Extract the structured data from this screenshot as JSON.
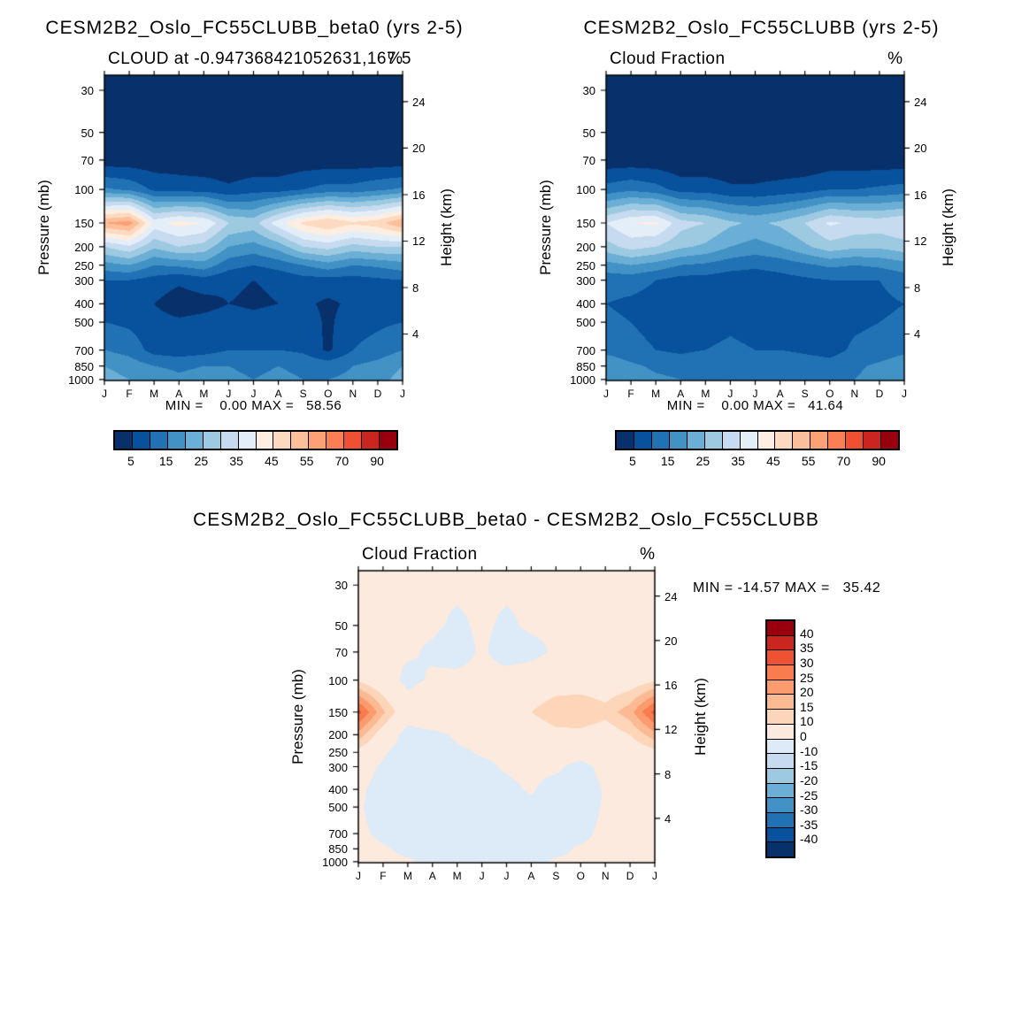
{
  "figure": {
    "background": "#ffffff"
  },
  "chart_data": [
    {
      "type": "heatmap",
      "title": "CESM2B2_Oslo_FC55CLUBB_beta0 (yrs 2-5)",
      "subtitle": "CLOUD at -0.947368421052631,167.5",
      "unit": "%",
      "ylabel_left": "Pressure (mb)",
      "ylabel_right": "Height (km)",
      "x_ticklabels": [
        "J",
        "F",
        "M",
        "A",
        "M",
        "J",
        "J",
        "A",
        "S",
        "O",
        "N",
        "D",
        "J"
      ],
      "pressure_levels_mb": [
        30,
        50,
        70,
        100,
        150,
        200,
        250,
        300,
        400,
        500,
        700,
        850,
        1000
      ],
      "height_ticks_km": [
        24,
        20,
        16,
        12,
        8,
        4
      ],
      "pressure_axis_range_mb": [
        25,
        1013
      ],
      "min": 0.0,
      "max": 58.56,
      "minmax_text": "MIN =    0.00 MAX =   58.56",
      "colorbar": {
        "orientation": "horizontal",
        "edges": [
          5,
          10,
          15,
          20,
          25,
          30,
          35,
          40,
          45,
          50,
          55,
          60,
          70,
          80,
          90
        ],
        "labels": [
          "5",
          "15",
          "25",
          "35",
          "45",
          "55",
          "70",
          "90"
        ],
        "colors": [
          "#08306b",
          "#08519c",
          "#2171b5",
          "#4292c6",
          "#6baed6",
          "#9ecae1",
          "#c6dbef",
          "#e3eef8",
          "#fdeee1",
          "#fdd9c0",
          "#fcbf9b",
          "#fca176",
          "#fb7e54",
          "#ef4f33",
          "#cb2520",
          "#99000d"
        ]
      },
      "values": [
        [
          1,
          1,
          1,
          1,
          1,
          1,
          1,
          1,
          1,
          1,
          1,
          1,
          1
        ],
        [
          1,
          1,
          1,
          1,
          1,
          1,
          1,
          1,
          1,
          1,
          1,
          1,
          1
        ],
        [
          2,
          2,
          2,
          2,
          1,
          1,
          1,
          1,
          2,
          2,
          2,
          2,
          2
        ],
        [
          16,
          14,
          9,
          8,
          8,
          6,
          8,
          8,
          10,
          12,
          12,
          14,
          16
        ],
        [
          55,
          58,
          38,
          42,
          40,
          30,
          28,
          38,
          46,
          50,
          46,
          48,
          55
        ],
        [
          30,
          34,
          26,
          30,
          28,
          20,
          18,
          22,
          30,
          32,
          28,
          30,
          30
        ],
        [
          18,
          20,
          15,
          16,
          18,
          12,
          10,
          12,
          15,
          18,
          15,
          16,
          18
        ],
        [
          10,
          10,
          8,
          6,
          8,
          6,
          5,
          6,
          8,
          8,
          8,
          9,
          10
        ],
        [
          8,
          7,
          5,
          2,
          3,
          5,
          4,
          5,
          6,
          4,
          6,
          7,
          8
        ],
        [
          10,
          9,
          7,
          6,
          7,
          8,
          7,
          8,
          8,
          4,
          8,
          9,
          10
        ],
        [
          15,
          13,
          8,
          7,
          8,
          10,
          10,
          10,
          9,
          4,
          10,
          12,
          15
        ],
        [
          20,
          18,
          15,
          14,
          15,
          15,
          14,
          15,
          14,
          13,
          15,
          17,
          20
        ],
        [
          22,
          20,
          18,
          16,
          17,
          16,
          15,
          16,
          15,
          15,
          16,
          18,
          22
        ]
      ]
    },
    {
      "type": "heatmap",
      "title": "CESM2B2_Oslo_FC55CLUBB (yrs 2-5)",
      "subtitle": "Cloud Fraction",
      "unit": "%",
      "ylabel_left": "Pressure (mb)",
      "ylabel_right": "Height (km)",
      "x_ticklabels": [
        "J",
        "F",
        "M",
        "A",
        "M",
        "J",
        "J",
        "A",
        "S",
        "O",
        "N",
        "D",
        "J"
      ],
      "pressure_levels_mb": [
        30,
        50,
        70,
        100,
        150,
        200,
        250,
        300,
        400,
        500,
        700,
        850,
        1000
      ],
      "height_ticks_km": [
        24,
        20,
        16,
        12,
        8,
        4
      ],
      "pressure_axis_range_mb": [
        25,
        1013
      ],
      "min": 0.0,
      "max": 41.64,
      "minmax_text": "MIN =    0.00 MAX =   41.64",
      "colorbar": {
        "orientation": "horizontal",
        "edges": [
          5,
          10,
          15,
          20,
          25,
          30,
          35,
          40,
          45,
          50,
          55,
          60,
          70,
          80,
          90
        ],
        "labels": [
          "5",
          "15",
          "25",
          "35",
          "45",
          "55",
          "70",
          "90"
        ],
        "colors": [
          "#08306b",
          "#08519c",
          "#2171b5",
          "#4292c6",
          "#6baed6",
          "#9ecae1",
          "#c6dbef",
          "#e3eef8",
          "#fdeee1",
          "#fdd9c0",
          "#fcbf9b",
          "#fca176",
          "#fb7e54",
          "#ef4f33",
          "#cb2520",
          "#99000d"
        ]
      },
      "values": [
        [
          1,
          1,
          1,
          1,
          1,
          1,
          1,
          1,
          1,
          1,
          1,
          1,
          1
        ],
        [
          1,
          1,
          1,
          1,
          1,
          1,
          1,
          1,
          1,
          1,
          1,
          1,
          1
        ],
        [
          2,
          2,
          2,
          1,
          1,
          1,
          1,
          1,
          1,
          2,
          2,
          2,
          2
        ],
        [
          12,
          14,
          12,
          8,
          8,
          6,
          6,
          7,
          8,
          10,
          10,
          11,
          12
        ],
        [
          35,
          40,
          41,
          32,
          30,
          26,
          24,
          26,
          30,
          36,
          34,
          33,
          35
        ],
        [
          28,
          32,
          30,
          26,
          24,
          20,
          18,
          20,
          24,
          28,
          26,
          26,
          28
        ],
        [
          18,
          20,
          18,
          15,
          14,
          12,
          11,
          12,
          14,
          16,
          15,
          16,
          18
        ],
        [
          12,
          12,
          10,
          8,
          8,
          7,
          7,
          8,
          9,
          10,
          10,
          10,
          12
        ],
        [
          10,
          9,
          8,
          6,
          6,
          7,
          6,
          7,
          8,
          7,
          8,
          9,
          10
        ],
        [
          11,
          10,
          8,
          7,
          8,
          9,
          8,
          9,
          8,
          7,
          9,
          10,
          11
        ],
        [
          14,
          12,
          10,
          9,
          10,
          11,
          10,
          10,
          9,
          8,
          11,
          12,
          14
        ],
        [
          18,
          16,
          14,
          13,
          14,
          14,
          13,
          14,
          13,
          12,
          14,
          16,
          18
        ],
        [
          20,
          18,
          16,
          15,
          15,
          15,
          14,
          15,
          14,
          14,
          15,
          17,
          20
        ]
      ]
    },
    {
      "type": "heatmap",
      "title": "CESM2B2_Oslo_FC55CLUBB_beta0 - CESM2B2_Oslo_FC55CLUBB",
      "subtitle": "Cloud Fraction",
      "unit": "%",
      "ylabel_left": "Pressure (mb)",
      "ylabel_right": "Height (km)",
      "x_ticklabels": [
        "J",
        "F",
        "M",
        "A",
        "M",
        "J",
        "J",
        "A",
        "S",
        "O",
        "N",
        "D",
        "J"
      ],
      "pressure_levels_mb": [
        30,
        50,
        70,
        100,
        150,
        200,
        250,
        300,
        400,
        500,
        700,
        850,
        1000
      ],
      "height_ticks_km": [
        24,
        20,
        16,
        12,
        8,
        4
      ],
      "pressure_axis_range_mb": [
        25,
        1013
      ],
      "min": -14.57,
      "max": 35.42,
      "minmax_text": "MIN = -14.57 MAX =   35.42",
      "colorbar": {
        "orientation": "vertical",
        "edges": [
          -40,
          -35,
          -30,
          -25,
          -20,
          -15,
          -10,
          0,
          10,
          15,
          20,
          25,
          30,
          35,
          40
        ],
        "labels": [
          "40",
          "35",
          "30",
          "25",
          "20",
          "15",
          "10",
          "0",
          "-10",
          "-15",
          "-20",
          "-25",
          "-30",
          "-35",
          "-40"
        ],
        "colors": [
          "#08306b",
          "#08519c",
          "#2171b5",
          "#4292c6",
          "#6baed6",
          "#9ecae1",
          "#c6dbef",
          "#dcebf7",
          "#fdeade",
          "#fdd5b9",
          "#fcba93",
          "#fc9b6e",
          "#f97b4e",
          "#ef5233",
          "#cb2520",
          "#99000d"
        ]
      },
      "values": [
        [
          1,
          1,
          1,
          1,
          1,
          1,
          1,
          1,
          1,
          1,
          1,
          1,
          1
        ],
        [
          2,
          2,
          1,
          1,
          -1,
          1,
          -1,
          1,
          1,
          1,
          1,
          2,
          2
        ],
        [
          3,
          2,
          1,
          -1,
          -3,
          1,
          -3,
          -2,
          1,
          2,
          2,
          3,
          3
        ],
        [
          9,
          4,
          -2,
          1,
          2,
          2,
          3,
          4,
          6,
          6,
          5,
          6,
          9
        ],
        [
          32,
          16,
          4,
          8,
          8,
          6,
          6,
          10,
          14,
          15,
          12,
          18,
          32
        ],
        [
          18,
          6,
          -3,
          -2,
          1,
          2,
          2,
          5,
          8,
          8,
          6,
          10,
          18
        ],
        [
          8,
          1,
          -4,
          -3,
          -1,
          0.5,
          1,
          2,
          3,
          3,
          3,
          5,
          8
        ],
        [
          3,
          -1,
          -5,
          -4,
          -2,
          -1,
          0.5,
          1,
          1,
          -2,
          2,
          3,
          3
        ],
        [
          1,
          -2,
          -6,
          -5,
          -3,
          -2,
          -1,
          0.5,
          -2,
          -3,
          0.5,
          2,
          1
        ],
        [
          0.5,
          -2,
          -4,
          -4,
          -3,
          -4,
          -3,
          -1,
          -2,
          -2,
          0.5,
          1,
          0.5
        ],
        [
          1,
          -1,
          -2,
          -3,
          -4,
          -5,
          -4,
          -2,
          -1,
          -1,
          1,
          1,
          1
        ],
        [
          2,
          0.5,
          -1,
          -2,
          -3,
          -3,
          -3,
          -2,
          -1,
          0.5,
          1,
          2,
          2
        ],
        [
          2,
          1,
          0.5,
          -1,
          -2,
          -2,
          -2,
          -1,
          0.5,
          0.5,
          1,
          2,
          2
        ]
      ]
    }
  ]
}
